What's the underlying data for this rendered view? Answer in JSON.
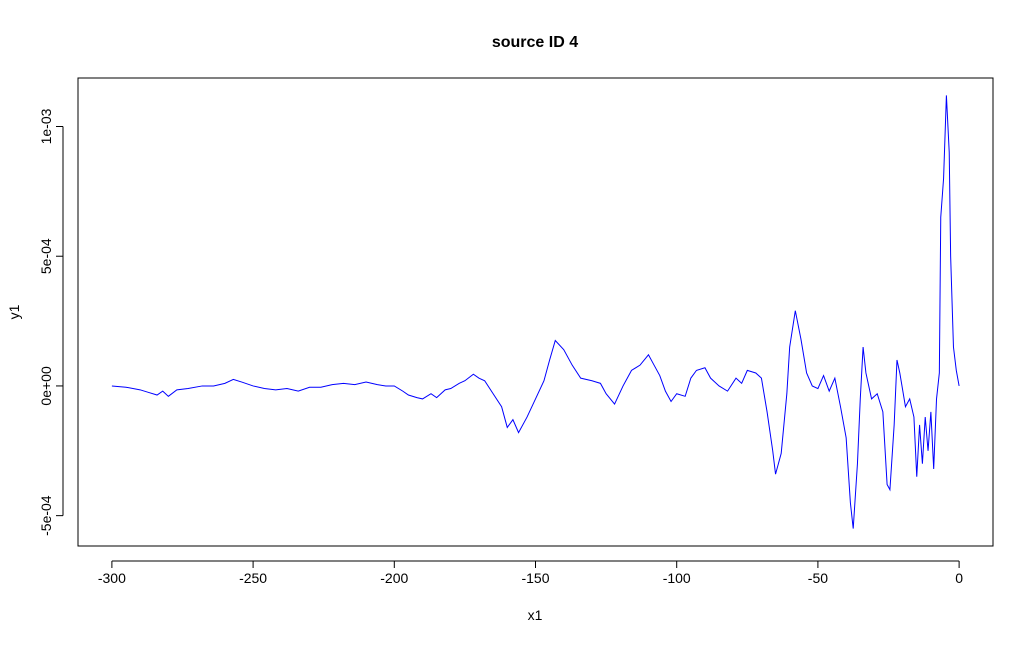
{
  "chart_data": {
    "type": "line",
    "title": "source ID 4",
    "x_label": "x1",
    "y_label": "y1",
    "color": "#0000ff",
    "x": [
      -300,
      -295,
      -290,
      -287,
      -284,
      -282,
      -280,
      -277,
      -273,
      -268,
      -264,
      -260,
      -257,
      -254,
      -250,
      -246,
      -242,
      -238,
      -234,
      -230,
      -226,
      -222,
      -218,
      -214,
      -210,
      -206,
      -203,
      -200,
      -197,
      -195,
      -192,
      -190,
      -187,
      -185,
      -182,
      -180,
      -177,
      -175,
      -172,
      -170,
      -168,
      -165,
      -162,
      -160,
      -158,
      -156,
      -153,
      -150,
      -147,
      -145,
      -143,
      -140,
      -137,
      -134,
      -130,
      -127,
      -125,
      -122,
      -119,
      -116,
      -113,
      -110,
      -108,
      -106,
      -104,
      -102,
      -100,
      -97,
      -95,
      -93,
      -90,
      -88,
      -85,
      -82,
      -79,
      -77,
      -75,
      -72,
      -70,
      -68,
      -66,
      -65,
      -63,
      -61,
      -60,
      -58,
      -56,
      -54,
      -52,
      -50,
      -48,
      -46,
      -44,
      -42,
      -40,
      -38.5,
      -37.5,
      -36,
      -35,
      -34,
      -33,
      -31,
      -29,
      -27,
      -25.5,
      -24.5,
      -23,
      -22,
      -21,
      -19,
      -17.5,
      -16,
      -15,
      -14,
      -13,
      -12,
      -11,
      -10,
      -9,
      -8,
      -7,
      -6.5,
      -5.5,
      -4.5,
      -3.5,
      -3,
      -2,
      -1,
      0
    ],
    "values": [
      0,
      -5e-06,
      -1.5e-05,
      -2.5e-05,
      -3.5e-05,
      -2e-05,
      -4e-05,
      -1.5e-05,
      -1e-05,
      0,
      0,
      1e-05,
      2.5e-05,
      1.5e-05,
      0,
      -1e-05,
      -1.5e-05,
      -1e-05,
      -2e-05,
      -5e-06,
      -5e-06,
      5e-06,
      1e-05,
      5e-06,
      1.5e-05,
      5e-06,
      0,
      0,
      -2e-05,
      -3.5e-05,
      -4.5e-05,
      -5e-05,
      -3e-05,
      -4.5e-05,
      -1.5e-05,
      -1e-05,
      1e-05,
      2e-05,
      4.5e-05,
      3e-05,
      2e-05,
      -3e-05,
      -8e-05,
      -0.00016,
      -0.00013,
      -0.00018,
      -0.00012,
      -5e-05,
      2e-05,
      0.0001,
      0.000175,
      0.00014,
      8e-05,
      3e-05,
      2e-05,
      1e-05,
      -3e-05,
      -7e-05,
      0,
      6e-05,
      8e-05,
      0.00012,
      8e-05,
      4e-05,
      -2e-05,
      -6e-05,
      -3e-05,
      -4e-05,
      3e-05,
      6e-05,
      7e-05,
      3e-05,
      0,
      -2e-05,
      3e-05,
      1e-05,
      6e-05,
      5e-05,
      3e-05,
      -0.0001,
      -0.00025,
      -0.00034,
      -0.00026,
      -3e-05,
      0.00015,
      0.00029,
      0.00018,
      5e-05,
      0,
      -1e-05,
      4e-05,
      -2e-05,
      3e-05,
      -8e-05,
      -0.0002,
      -0.00045,
      -0.00055,
      -0.0003,
      -5e-05,
      0.00015,
      5e-05,
      -5e-05,
      -3e-05,
      -0.0001,
      -0.00038,
      -0.0004,
      -0.00015,
      0.0001,
      5e-05,
      -8e-05,
      -5e-05,
      -0.00012,
      -0.00035,
      -0.00015,
      -0.0003,
      -0.00012,
      -0.00025,
      -0.0001,
      -0.00032,
      -5e-05,
      5e-05,
      0.00065,
      0.0008,
      0.00112,
      0.0009,
      0.0005,
      0.00015,
      6e-05,
      0
    ],
    "xlim": [
      -312,
      12
    ],
    "ylim": [
      -0.000617,
      0.001187
    ],
    "xticks": [
      -300,
      -250,
      -200,
      -150,
      -100,
      -50,
      0
    ],
    "yticks": [
      {
        "value": -0.0005,
        "label": "-5e-04"
      },
      {
        "value": 0,
        "label": "0e+00"
      },
      {
        "value": 0.0005,
        "label": "5e-04"
      },
      {
        "value": 0.001,
        "label": "1e-03"
      }
    ]
  }
}
